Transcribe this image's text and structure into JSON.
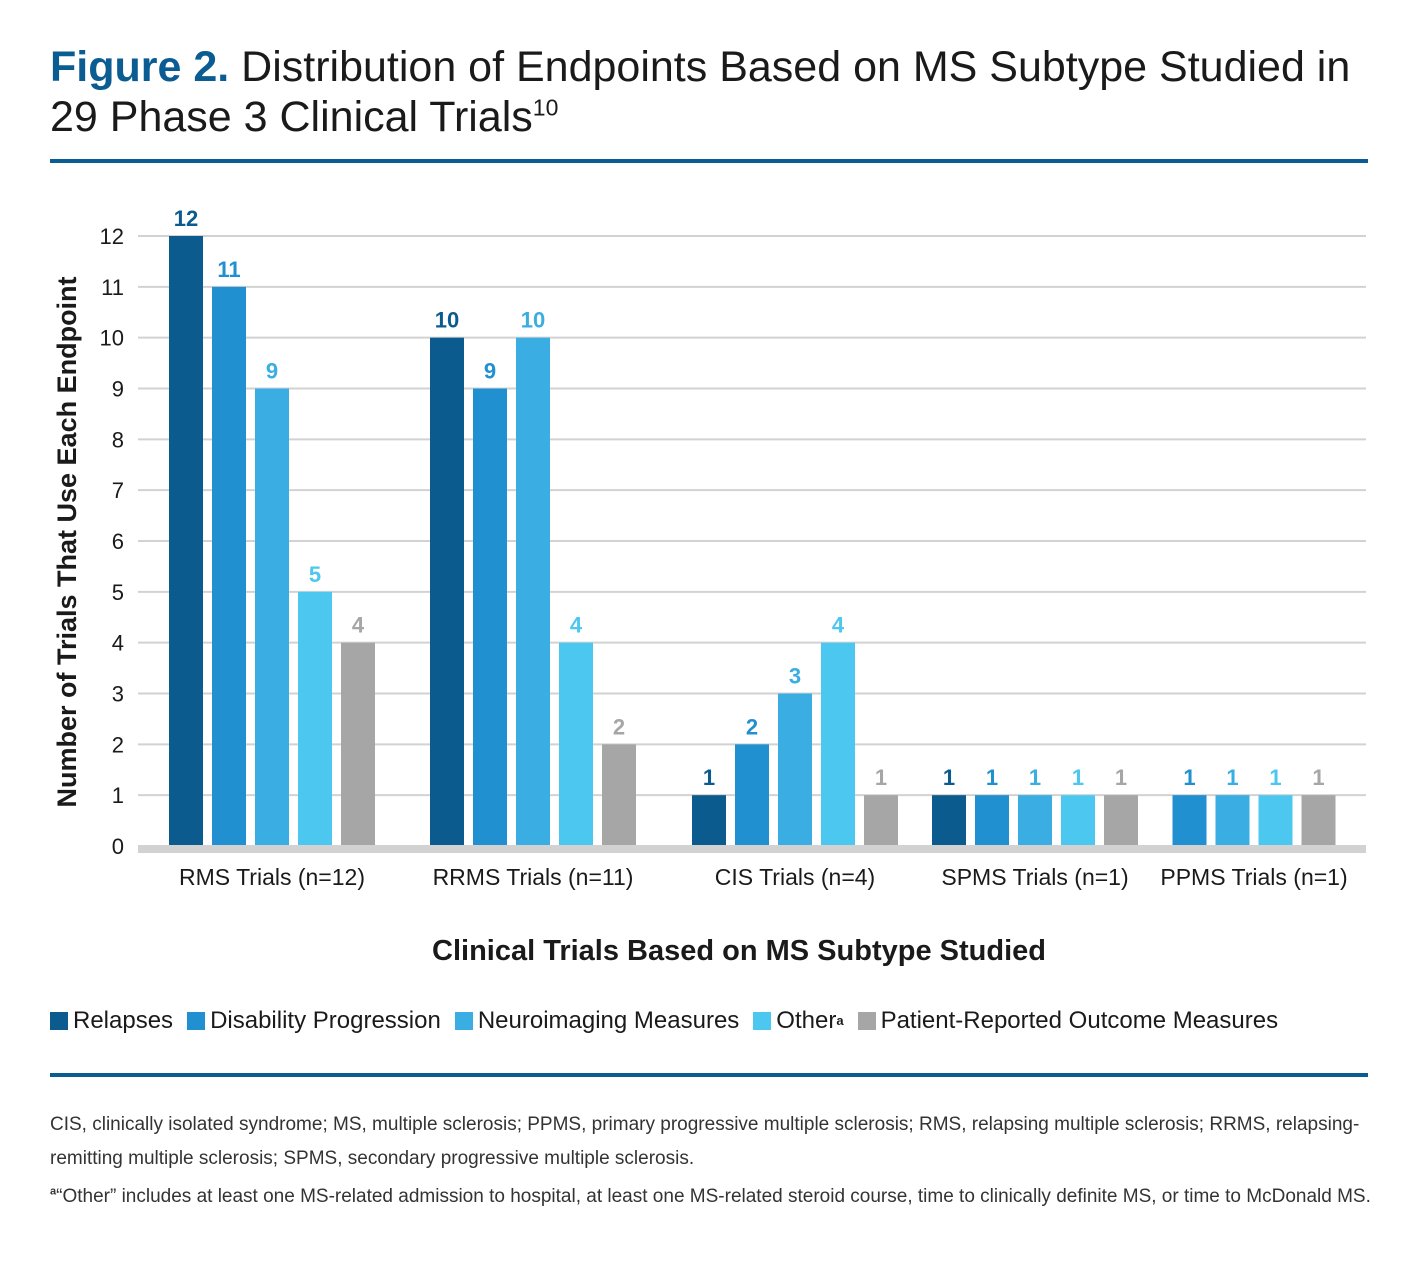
{
  "header": {
    "figure_label": "Figure 2.",
    "title_text": "Distribution of Endpoints Based on MS Subtype Studied in 29 Phase 3 Clinical Trials",
    "title_ref": "10"
  },
  "chart_data": {
    "type": "bar",
    "title": "Distribution of Endpoints Based on MS Subtype Studied in 29 Phase 3 Clinical Trials",
    "xlabel": "Clinical Trials Based on MS Subtype Studied",
    "ylabel": "Number of Trials That Use Each Endpoint",
    "ylim": [
      0,
      12
    ],
    "yticks": [
      0,
      1,
      2,
      3,
      4,
      5,
      6,
      7,
      8,
      9,
      10,
      11,
      12
    ],
    "grid": true,
    "legend_position": "bottom",
    "categories": [
      "RMS Trials (n=12)",
      "RRMS Trials (n=11)",
      "CIS Trials (n=4)",
      "SPMS Trials (n=1)",
      "PPMS Trials (n=1)"
    ],
    "series": [
      {
        "name": "Relapses",
        "color": "#0b5b8f",
        "label_color": "#0b5b8f",
        "values": [
          12,
          10,
          1,
          1,
          null
        ]
      },
      {
        "name": "Disability Progression",
        "color": "#2190d0",
        "label_color": "#2190d0",
        "values": [
          11,
          9,
          2,
          1,
          1
        ]
      },
      {
        "name": "Neuroimaging Measures",
        "color": "#3aade3",
        "label_color": "#3aade3",
        "values": [
          9,
          10,
          3,
          1,
          1
        ]
      },
      {
        "name": "Other",
        "name_sup": "a",
        "color": "#4cc8f0",
        "label_color": "#4cc8f0",
        "values": [
          5,
          4,
          4,
          1,
          1
        ]
      },
      {
        "name": "Patient-Reported Outcome Measures",
        "color": "#a6a6a6",
        "label_color": "#a6a6a6",
        "values": [
          4,
          2,
          1,
          1,
          1
        ]
      }
    ]
  },
  "footnotes": {
    "abbreviations": "CIS, clinically isolated syndrome; MS, multiple sclerosis; PPMS, primary progressive multiple sclerosis; RMS, relapsing multiple sclerosis; RRMS, relapsing-remitting multiple sclerosis; SPMS, secondary progressive multiple sclerosis.",
    "note_marker": "a",
    "note_text": "“Other” includes at least one MS-related admission to hospital, at least one MS-related steroid course, time to clinically definite MS, or time to McDonald MS."
  }
}
